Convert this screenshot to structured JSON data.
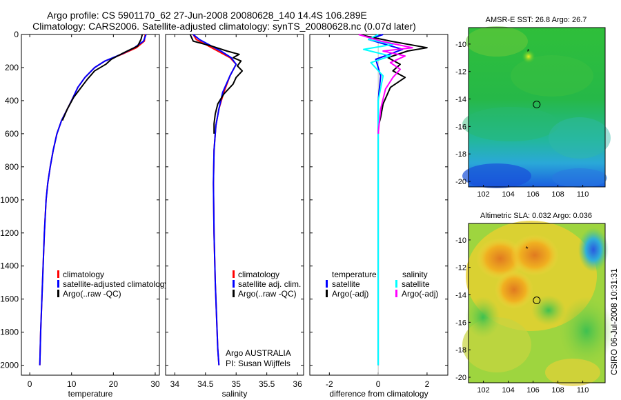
{
  "header": {
    "line1": "Argo profile: CS 5901170_62 27-Jun-2008 20080628_140 14.4S 106.289E",
    "line2": "Climatology: CARS2006. Satellite-adjusted climatology: synTS_20080628.nc (0.07d later)"
  },
  "side_stamp": "CSIRO 06-Jul-2008 10:31:31",
  "colors": {
    "climatology": "#ff0000",
    "satellite": "#0000ff",
    "argo": "#000000",
    "salinity_satellite": "#00ffff",
    "salinity_argo": "#ff00ff"
  },
  "legends": {
    "temperature": [
      "climatology",
      "satellite-adjusted climatology",
      "Argo(..raw -QC)"
    ],
    "salinity": [
      "climatology",
      "satellite adj. clim.",
      "Argo(..raw -QC)"
    ],
    "difference_temperature": {
      "header": "temperature",
      "items": [
        "satellite",
        "Argo(-adj)"
      ]
    },
    "difference_salinity": {
      "header": "salinity",
      "items": [
        "satellite",
        "Argo(-adj)"
      ]
    }
  },
  "salinity_note": [
    "Argo AUSTRALIA",
    "PI: Susan Wijffels"
  ],
  "maps": {
    "sst_title": "AMSR-E SST: 26.8 Argo: 26.7",
    "sla_title": "Altimetric SLA: 0.032 Argo: 0.036"
  },
  "chart_data": [
    {
      "type": "line",
      "name": "temperature profile",
      "xlabel": "temperature",
      "ylabel": "",
      "xlim": [
        -2,
        31
      ],
      "ylim": [
        2060,
        0
      ],
      "xticks": [
        0,
        10,
        20,
        30
      ],
      "yticks": [
        0,
        200,
        400,
        600,
        800,
        1000,
        1200,
        1400,
        1600,
        1800,
        2000
      ],
      "series": [
        {
          "name": "climatology",
          "color": "#ff0000",
          "x": [
            27.6,
            27.4,
            25.5,
            22,
            18,
            15.5,
            13.2,
            11.5,
            10,
            8.8,
            7.6,
            6.5,
            5.6,
            4.9,
            4.3,
            3.9,
            3.5,
            3.2,
            2.9,
            2.6,
            2.4
          ],
          "y": [
            0,
            40,
            80,
            120,
            160,
            200,
            260,
            320,
            400,
            460,
            520,
            600,
            700,
            800,
            900,
            1000,
            1200,
            1400,
            1600,
            1800,
            2000
          ]
        },
        {
          "name": "satellite-adjusted climatology",
          "color": "#0000ff",
          "x": [
            27.8,
            27.2,
            25,
            21.8,
            18,
            15.5,
            13.2,
            11.5,
            10,
            8.8,
            7.6,
            6.5,
            5.6,
            4.9,
            4.3,
            3.9,
            3.5,
            3.2,
            2.9,
            2.6,
            2.4
          ],
          "y": [
            0,
            40,
            80,
            120,
            160,
            200,
            260,
            320,
            400,
            460,
            520,
            600,
            700,
            800,
            900,
            1000,
            1200,
            1400,
            1600,
            1800,
            2000
          ]
        },
        {
          "name": "Argo(..raw -QC)",
          "color": "#000000",
          "x": [
            26.9,
            26.6,
            25.8,
            22.5,
            19.5,
            18.2,
            15.5,
            13.8,
            12,
            10.5,
            9,
            7.8
          ],
          "y": [
            0,
            30,
            70,
            110,
            150,
            180,
            220,
            270,
            330,
            380,
            450,
            520
          ]
        }
      ]
    },
    {
      "type": "line",
      "name": "salinity profile",
      "xlabel": "salinity",
      "ylabel": "",
      "xlim": [
        33.85,
        36.1
      ],
      "ylim": [
        2060,
        0
      ],
      "xticks": [
        34,
        34.5,
        35,
        35.5,
        36
      ],
      "series": [
        {
          "name": "climatology",
          "color": "#ff0000",
          "x": [
            34.3,
            34.35,
            34.5,
            34.7,
            34.9,
            35.0,
            34.9,
            34.8,
            34.72,
            34.67,
            34.64,
            34.63,
            34.64,
            34.66,
            34.68,
            34.7,
            34.72
          ],
          "y": [
            0,
            30,
            60,
            100,
            140,
            180,
            250,
            350,
            450,
            550,
            700,
            900,
            1200,
            1500,
            1700,
            1900,
            2000
          ]
        },
        {
          "name": "satellite adj. clim.",
          "color": "#0000ff",
          "x": [
            34.3,
            34.4,
            34.55,
            34.75,
            34.92,
            35.0,
            34.9,
            34.78,
            34.72,
            34.67,
            34.64,
            34.63,
            34.64,
            34.66,
            34.68,
            34.7,
            34.72
          ],
          "y": [
            0,
            30,
            60,
            100,
            140,
            180,
            250,
            350,
            450,
            550,
            700,
            900,
            1200,
            1500,
            1700,
            1900,
            2000
          ]
        },
        {
          "name": "Argo(..raw -QC)",
          "color": "#000000",
          "x": [
            34.25,
            34.3,
            34.6,
            34.85,
            35.05,
            34.95,
            35.08,
            35.02,
            35.1,
            35.0,
            34.95,
            34.8,
            34.7,
            34.66,
            34.64,
            34.64
          ],
          "y": [
            0,
            40,
            70,
            100,
            120,
            140,
            160,
            190,
            220,
            260,
            300,
            360,
            420,
            480,
            540,
            600
          ]
        }
      ]
    },
    {
      "type": "line",
      "name": "difference from climatology",
      "xlabel": "difference from climatology",
      "ylabel": "",
      "xlim": [
        -2.8,
        2.85
      ],
      "ylim": [
        2060,
        0
      ],
      "xticks": [
        -2,
        0,
        2
      ],
      "series": [
        {
          "name": "temperature satellite",
          "color": "#0000ff",
          "x": [
            0.2,
            -0.4,
            0.3,
            1.0,
            -0.1,
            0.1,
            0,
            0,
            0,
            0,
            0,
            0,
            0
          ],
          "y": [
            0,
            30,
            60,
            90,
            150,
            250,
            400,
            600,
            800,
            1000,
            1400,
            1800,
            2000
          ]
        },
        {
          "name": "temperature Argo(-adj)",
          "color": "#000000",
          "x": [
            -0.8,
            0.5,
            2.0,
            1.2,
            0.4,
            0.9,
            0.6,
            1.1,
            0.5,
            0.2,
            0.1,
            0,
            0
          ],
          "y": [
            0,
            40,
            80,
            100,
            140,
            180,
            220,
            260,
            320,
            420,
            500,
            560,
            600
          ]
        },
        {
          "name": "salinity satellite",
          "color": "#00ffff",
          "x": [
            0,
            -0.4,
            0.6,
            -0.6,
            0.5,
            -0.3,
            0.2,
            0,
            0,
            0,
            0,
            0,
            0
          ],
          "y": [
            0,
            30,
            60,
            90,
            130,
            170,
            250,
            400,
            600,
            800,
            1200,
            1600,
            2000
          ]
        },
        {
          "name": "salinity Argo(-adj)",
          "color": "#ff00ff",
          "x": [
            -0.8,
            0.1,
            1.4,
            0.2,
            1.1,
            0.5,
            0.9,
            0.6,
            0.3,
            0.1,
            0
          ],
          "y": [
            0,
            40,
            80,
            100,
            130,
            170,
            210,
            260,
            330,
            450,
            600
          ]
        }
      ]
    },
    {
      "type": "heatmap",
      "name": "AMSR-E SST map",
      "xlim": [
        100.8,
        111.8
      ],
      "ylim": [
        -20.4,
        -8.8
      ],
      "xticks": [
        102,
        104,
        106,
        108,
        110
      ],
      "yticks": [
        -10,
        -12,
        -14,
        -16,
        -18,
        -20
      ],
      "float_position": [
        106.29,
        -14.4
      ],
      "marker_position": [
        105.6,
        -10.5
      ]
    },
    {
      "type": "heatmap",
      "name": "Altimetric SLA map",
      "xlim": [
        100.8,
        111.8
      ],
      "ylim": [
        -20.4,
        -8.8
      ],
      "xticks": [
        102,
        104,
        106,
        108,
        110
      ],
      "yticks": [
        -10,
        -12,
        -14,
        -16,
        -18,
        -20
      ],
      "float_position": [
        106.29,
        -14.4
      ],
      "marker_position": [
        105.5,
        -10.6
      ]
    }
  ]
}
